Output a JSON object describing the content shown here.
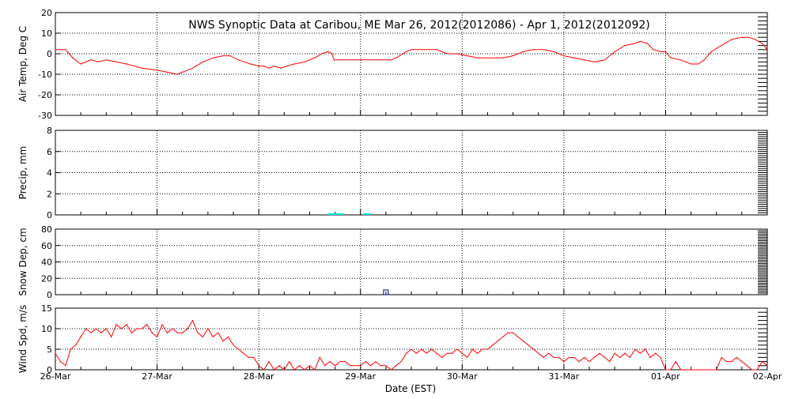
{
  "chart_data": {
    "type": "line",
    "title": "NWS Synoptic Data at Caribou, ME   Mar 26, 2012(2012086) - Apr  1, 2012(2012092)",
    "xlabel": "Date (EST)",
    "x_tick_labels": [
      "26-Mar",
      "27-Mar",
      "28-Mar",
      "29-Mar",
      "30-Mar",
      "31-Mar",
      "01-Apr",
      "02-Apr"
    ],
    "x_range_days": [
      0,
      7
    ],
    "grid": true,
    "colors": {
      "temp": "#ff0000",
      "precip": "#00e5e5",
      "snow": "#000099",
      "wind": "#ff0000",
      "axis": "#000000"
    },
    "panels": [
      {
        "id": "temp",
        "ylabel": "Air Temp, Deg C",
        "ylim": [
          -30,
          20
        ],
        "yticks": [
          20,
          10,
          0,
          -10,
          -20,
          -30
        ],
        "series": [
          {
            "kind": "line",
            "points": [
              [
                0.0,
                2
              ],
              [
                0.1,
                2
              ],
              [
                0.17,
                -2
              ],
              [
                0.25,
                -5
              ],
              [
                0.3,
                -4
              ],
              [
                0.35,
                -3
              ],
              [
                0.42,
                -4
              ],
              [
                0.5,
                -3
              ],
              [
                0.6,
                -4
              ],
              [
                0.7,
                -5
              ],
              [
                0.85,
                -7
              ],
              [
                1.0,
                -8
              ],
              [
                1.1,
                -9
              ],
              [
                1.2,
                -10
              ],
              [
                1.25,
                -9
              ],
              [
                1.35,
                -7
              ],
              [
                1.45,
                -4
              ],
              [
                1.55,
                -2
              ],
              [
                1.65,
                -1
              ],
              [
                1.72,
                -1
              ],
              [
                1.8,
                -3
              ],
              [
                1.92,
                -5
              ],
              [
                2.0,
                -6
              ],
              [
                2.05,
                -6
              ],
              [
                2.1,
                -7
              ],
              [
                2.15,
                -6
              ],
              [
                2.22,
                -7
              ],
              [
                2.28,
                -6
              ],
              [
                2.35,
                -5
              ],
              [
                2.45,
                -4
              ],
              [
                2.55,
                -2
              ],
              [
                2.62,
                0
              ],
              [
                2.68,
                1
              ],
              [
                2.72,
                0
              ],
              [
                2.74,
                -3
              ],
              [
                2.8,
                -3
              ],
              [
                3.0,
                -3
              ],
              [
                3.2,
                -3
              ],
              [
                3.3,
                -3
              ],
              [
                3.35,
                -2
              ],
              [
                3.45,
                1
              ],
              [
                3.5,
                2
              ],
              [
                3.6,
                2
              ],
              [
                3.75,
                2
              ],
              [
                3.8,
                1
              ],
              [
                3.85,
                0
              ],
              [
                3.95,
                0
              ],
              [
                4.05,
                -1
              ],
              [
                4.15,
                -2
              ],
              [
                4.3,
                -2
              ],
              [
                4.4,
                -2
              ],
              [
                4.5,
                -1
              ],
              [
                4.6,
                1
              ],
              [
                4.7,
                2
              ],
              [
                4.8,
                2
              ],
              [
                4.9,
                1
              ],
              [
                5.0,
                -1
              ],
              [
                5.1,
                -2
              ],
              [
                5.2,
                -3
              ],
              [
                5.3,
                -4
              ],
              [
                5.4,
                -3
              ],
              [
                5.5,
                1
              ],
              [
                5.6,
                4
              ],
              [
                5.7,
                5
              ],
              [
                5.75,
                6
              ],
              [
                5.82,
                5
              ],
              [
                5.88,
                2
              ],
              [
                5.95,
                1
              ],
              [
                6.0,
                1
              ],
              [
                6.05,
                -2
              ],
              [
                6.15,
                -3
              ],
              [
                6.25,
                -5
              ],
              [
                6.32,
                -5
              ],
              [
                6.38,
                -3
              ],
              [
                6.45,
                1
              ],
              [
                6.55,
                4
              ],
              [
                6.65,
                7
              ],
              [
                6.75,
                8
              ],
              [
                6.82,
                8
              ],
              [
                6.88,
                7
              ],
              [
                6.95,
                5
              ],
              [
                7.0,
                2
              ]
            ]
          }
        ]
      },
      {
        "id": "precip",
        "ylabel": "Precip, mm",
        "ylim": [
          0,
          8
        ],
        "yticks": [
          8,
          6,
          4,
          2,
          0
        ],
        "series": [
          {
            "kind": "bars",
            "points": [
              [
                2.7,
                0.1
              ],
              [
                2.72,
                0.1
              ],
              [
                2.75,
                0.1
              ],
              [
                2.78,
                0.1
              ],
              [
                2.81,
                0.1
              ],
              [
                3.05,
                0.1
              ],
              [
                3.08,
                0.1
              ]
            ]
          }
        ]
      },
      {
        "id": "snow",
        "ylabel": "Snow Dep, cm",
        "ylim": [
          0,
          80
        ],
        "yticks": [
          80,
          60,
          40,
          20,
          0
        ],
        "series": [
          {
            "kind": "markers",
            "points": [
              [
                3.25,
                0
              ]
            ]
          }
        ]
      },
      {
        "id": "wind",
        "ylabel": "Wind Spd, m/s",
        "ylim": [
          0,
          15
        ],
        "yticks": [
          15,
          10,
          5,
          0
        ],
        "series": [
          {
            "kind": "line",
            "points": [
              [
                0.0,
                4
              ],
              [
                0.05,
                2
              ],
              [
                0.1,
                1
              ],
              [
                0.15,
                5
              ],
              [
                0.2,
                6
              ],
              [
                0.25,
                8
              ],
              [
                0.3,
                10
              ],
              [
                0.35,
                9
              ],
              [
                0.4,
                10
              ],
              [
                0.45,
                9
              ],
              [
                0.5,
                10
              ],
              [
                0.55,
                8
              ],
              [
                0.6,
                11
              ],
              [
                0.65,
                10
              ],
              [
                0.7,
                11
              ],
              [
                0.75,
                9
              ],
              [
                0.8,
                10
              ],
              [
                0.85,
                10
              ],
              [
                0.9,
                11
              ],
              [
                0.95,
                9
              ],
              [
                1.0,
                8
              ],
              [
                1.05,
                11
              ],
              [
                1.1,
                9
              ],
              [
                1.15,
                10
              ],
              [
                1.2,
                9
              ],
              [
                1.25,
                9
              ],
              [
                1.3,
                10
              ],
              [
                1.35,
                12
              ],
              [
                1.4,
                9
              ],
              [
                1.45,
                8
              ],
              [
                1.5,
                10
              ],
              [
                1.55,
                8
              ],
              [
                1.6,
                9
              ],
              [
                1.65,
                7
              ],
              [
                1.7,
                8
              ],
              [
                1.75,
                6
              ],
              [
                1.8,
                5
              ],
              [
                1.85,
                4
              ],
              [
                1.9,
                3
              ],
              [
                1.95,
                3
              ],
              [
                2.0,
                1
              ],
              [
                2.05,
                0
              ],
              [
                2.1,
                2
              ],
              [
                2.15,
                0
              ],
              [
                2.2,
                1
              ],
              [
                2.25,
                0
              ],
              [
                2.3,
                2
              ],
              [
                2.35,
                0
              ],
              [
                2.4,
                1
              ],
              [
                2.45,
                0
              ],
              [
                2.5,
                1
              ],
              [
                2.55,
                0
              ],
              [
                2.6,
                3
              ],
              [
                2.65,
                1
              ],
              [
                2.7,
                2
              ],
              [
                2.75,
                1
              ],
              [
                2.8,
                2
              ],
              [
                2.85,
                2
              ],
              [
                2.9,
                1
              ],
              [
                2.95,
                1
              ],
              [
                3.0,
                1
              ],
              [
                3.05,
                2
              ],
              [
                3.1,
                1
              ],
              [
                3.15,
                2
              ],
              [
                3.2,
                1
              ],
              [
                3.25,
                1
              ],
              [
                3.3,
                0
              ],
              [
                3.35,
                1
              ],
              [
                3.4,
                2
              ],
              [
                3.45,
                4
              ],
              [
                3.5,
                5
              ],
              [
                3.55,
                4
              ],
              [
                3.6,
                5
              ],
              [
                3.65,
                4
              ],
              [
                3.7,
                5
              ],
              [
                3.75,
                4
              ],
              [
                3.8,
                3
              ],
              [
                3.85,
                4
              ],
              [
                3.9,
                4
              ],
              [
                3.95,
                5
              ],
              [
                4.0,
                4
              ],
              [
                4.05,
                3
              ],
              [
                4.1,
                5
              ],
              [
                4.15,
                4
              ],
              [
                4.2,
                5
              ],
              [
                4.25,
                5
              ],
              [
                4.3,
                6
              ],
              [
                4.35,
                7
              ],
              [
                4.4,
                8
              ],
              [
                4.45,
                9
              ],
              [
                4.5,
                9
              ],
              [
                4.55,
                8
              ],
              [
                4.6,
                7
              ],
              [
                4.65,
                6
              ],
              [
                4.7,
                5
              ],
              [
                4.75,
                4
              ],
              [
                4.8,
                3
              ],
              [
                4.85,
                4
              ],
              [
                4.9,
                3
              ],
              [
                4.95,
                3
              ],
              [
                5.0,
                2
              ],
              [
                5.05,
                3
              ],
              [
                5.1,
                3
              ],
              [
                5.15,
                2
              ],
              [
                5.2,
                3
              ],
              [
                5.25,
                2
              ],
              [
                5.3,
                3
              ],
              [
                5.35,
                4
              ],
              [
                5.4,
                3
              ],
              [
                5.45,
                2
              ],
              [
                5.5,
                4
              ],
              [
                5.55,
                3
              ],
              [
                5.6,
                4
              ],
              [
                5.65,
                3
              ],
              [
                5.7,
                5
              ],
              [
                5.75,
                4
              ],
              [
                5.8,
                5
              ],
              [
                5.85,
                3
              ],
              [
                5.9,
                4
              ],
              [
                5.95,
                3
              ],
              [
                6.0,
                0
              ],
              [
                6.05,
                0
              ],
              [
                6.1,
                2
              ],
              [
                6.15,
                0
              ],
              [
                6.2,
                0
              ],
              [
                6.25,
                0
              ],
              [
                6.3,
                0
              ],
              [
                6.35,
                0
              ],
              [
                6.4,
                0
              ],
              [
                6.45,
                0
              ],
              [
                6.5,
                0
              ],
              [
                6.55,
                3
              ],
              [
                6.6,
                2
              ],
              [
                6.65,
                2
              ],
              [
                6.7,
                3
              ],
              [
                6.75,
                2
              ],
              [
                6.8,
                1
              ],
              [
                6.85,
                0
              ],
              [
                6.9,
                0
              ],
              [
                6.95,
                2
              ],
              [
                7.0,
                1
              ]
            ]
          }
        ]
      }
    ]
  }
}
